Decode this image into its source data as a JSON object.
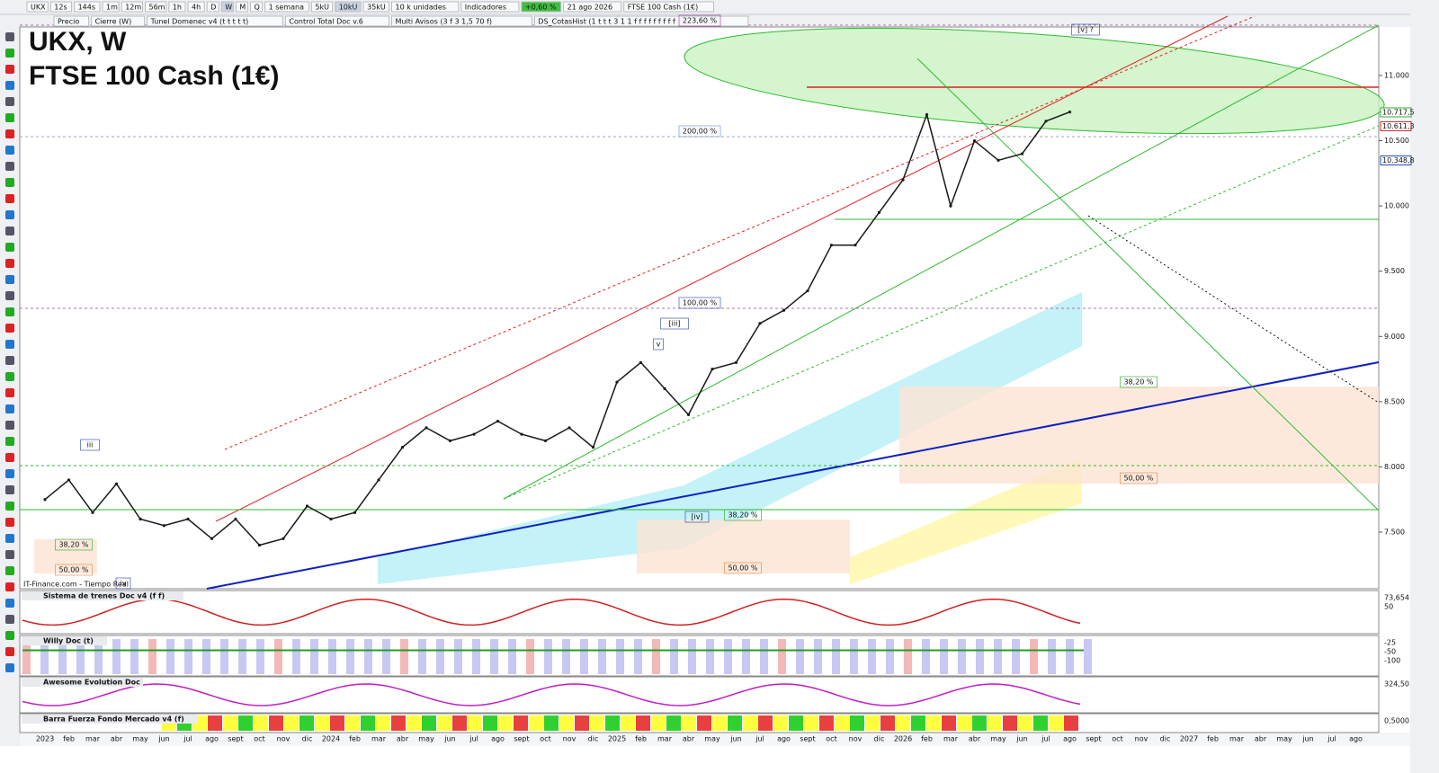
{
  "toolbar": {
    "symbol": "UKX",
    "timeframes": [
      "12s",
      "144s",
      "1m",
      "12m",
      "56m",
      "1h",
      "4h",
      "D",
      "W",
      "M",
      "Q"
    ],
    "period": "1 semana",
    "units": [
      "5kU",
      "10kU",
      "35kU"
    ],
    "unit_size": "10 k unidades",
    "indicators": "Indicadores",
    "change": "+0,60 %",
    "date": "21 ago 2026",
    "instrument": "FTSE 100 Cash (1€)"
  },
  "overlays": [
    "Precio",
    "Cierre (W)",
    "Tunel Domenec v4 (t t t t t)",
    "Control Total Doc v.6",
    "Multi Avisos (3 f 3 1,5 70 f)",
    "DS_CotasHist (1 t t t 3 1 1 f f f f f f f f f"
  ],
  "chart_data": {
    "type": "line",
    "title": "UKX, W",
    "subtitle": "FTSE 100 Cash (1€)",
    "categories": [
      "2023",
      "feb",
      "mar",
      "abr",
      "may",
      "jun",
      "jul",
      "ago",
      "sept",
      "oct",
      "nov",
      "dic",
      "2024",
      "feb",
      "mar",
      "abr",
      "may",
      "jun",
      "jul",
      "ago",
      "sept",
      "oct",
      "nov",
      "dic",
      "2025",
      "feb",
      "mar",
      "abr",
      "may",
      "jun",
      "jul",
      "ago",
      "sept",
      "oct",
      "nov",
      "dic",
      "2026",
      "feb",
      "mar",
      "abr",
      "may",
      "jun",
      "jul",
      "ago",
      "sept",
      "oct",
      "nov",
      "dic",
      "2027",
      "feb",
      "mar",
      "abr",
      "may",
      "jun",
      "jul",
      "ago"
    ],
    "values": [
      7750,
      7900,
      7650,
      7870,
      7600,
      7550,
      7600,
      7450,
      7600,
      7400,
      7450,
      7700,
      7600,
      7650,
      7900,
      8150,
      8300,
      8200,
      8250,
      8350,
      8250,
      8200,
      8300,
      8150,
      8650,
      8800,
      8600,
      8400,
      8750,
      8800,
      9100,
      9200,
      9350,
      9700,
      9700,
      9950,
      10200,
      10700,
      10000,
      10500,
      10350,
      10400,
      10650,
      10720,
      null,
      null,
      null,
      null,
      null,
      null,
      null,
      null,
      null,
      null,
      null,
      null
    ],
    "color": "#1a1a1a",
    "ylim": [
      7066,
      11372
    ],
    "yticks": [
      {
        "value": 7500,
        "label": "7.500"
      },
      {
        "value": 8000,
        "label": "8.000"
      },
      {
        "value": 8500,
        "label": "8.500"
      },
      {
        "value": 9000,
        "label": "9.000"
      },
      {
        "value": 9500,
        "label": "9.500"
      },
      {
        "value": 10000,
        "label": "10.000"
      },
      {
        "value": 10500,
        "label": "10.500"
      },
      {
        "value": 11000,
        "label": "11.000"
      }
    ],
    "price_labels": [
      {
        "value": 10717.5,
        "label": "10.717,5"
      },
      {
        "value": 10611.3,
        "label": "10.611,3"
      },
      {
        "value": 10348.8,
        "label": "10.348,8"
      }
    ],
    "annotations": [
      "223,60 %",
      "200,00 %",
      "100,00 %",
      "38,20 %",
      "50,00 %",
      "38,20 %",
      "50,00 %",
      "38,20 %",
      "50,00 %",
      "[v] ?",
      "[iii]",
      "v",
      "iii",
      "[iv]",
      "iv"
    ],
    "source": "IT-Finance.com - Tiempo Real"
  },
  "panels": [
    {
      "title": "Sistema de trenes Doc v4 (f f)",
      "axis": [
        "73,654",
        "50"
      ]
    },
    {
      "title": "Willy Doc (t)",
      "axis": [
        "-25",
        "-50",
        "-100"
      ]
    },
    {
      "title": "Awesome Evolution Doc",
      "axis": [
        "324,50"
      ]
    },
    {
      "title": "Barra Fuerza Fondo Mercado v4 (f)",
      "axis": [
        "0,5000"
      ]
    }
  ]
}
